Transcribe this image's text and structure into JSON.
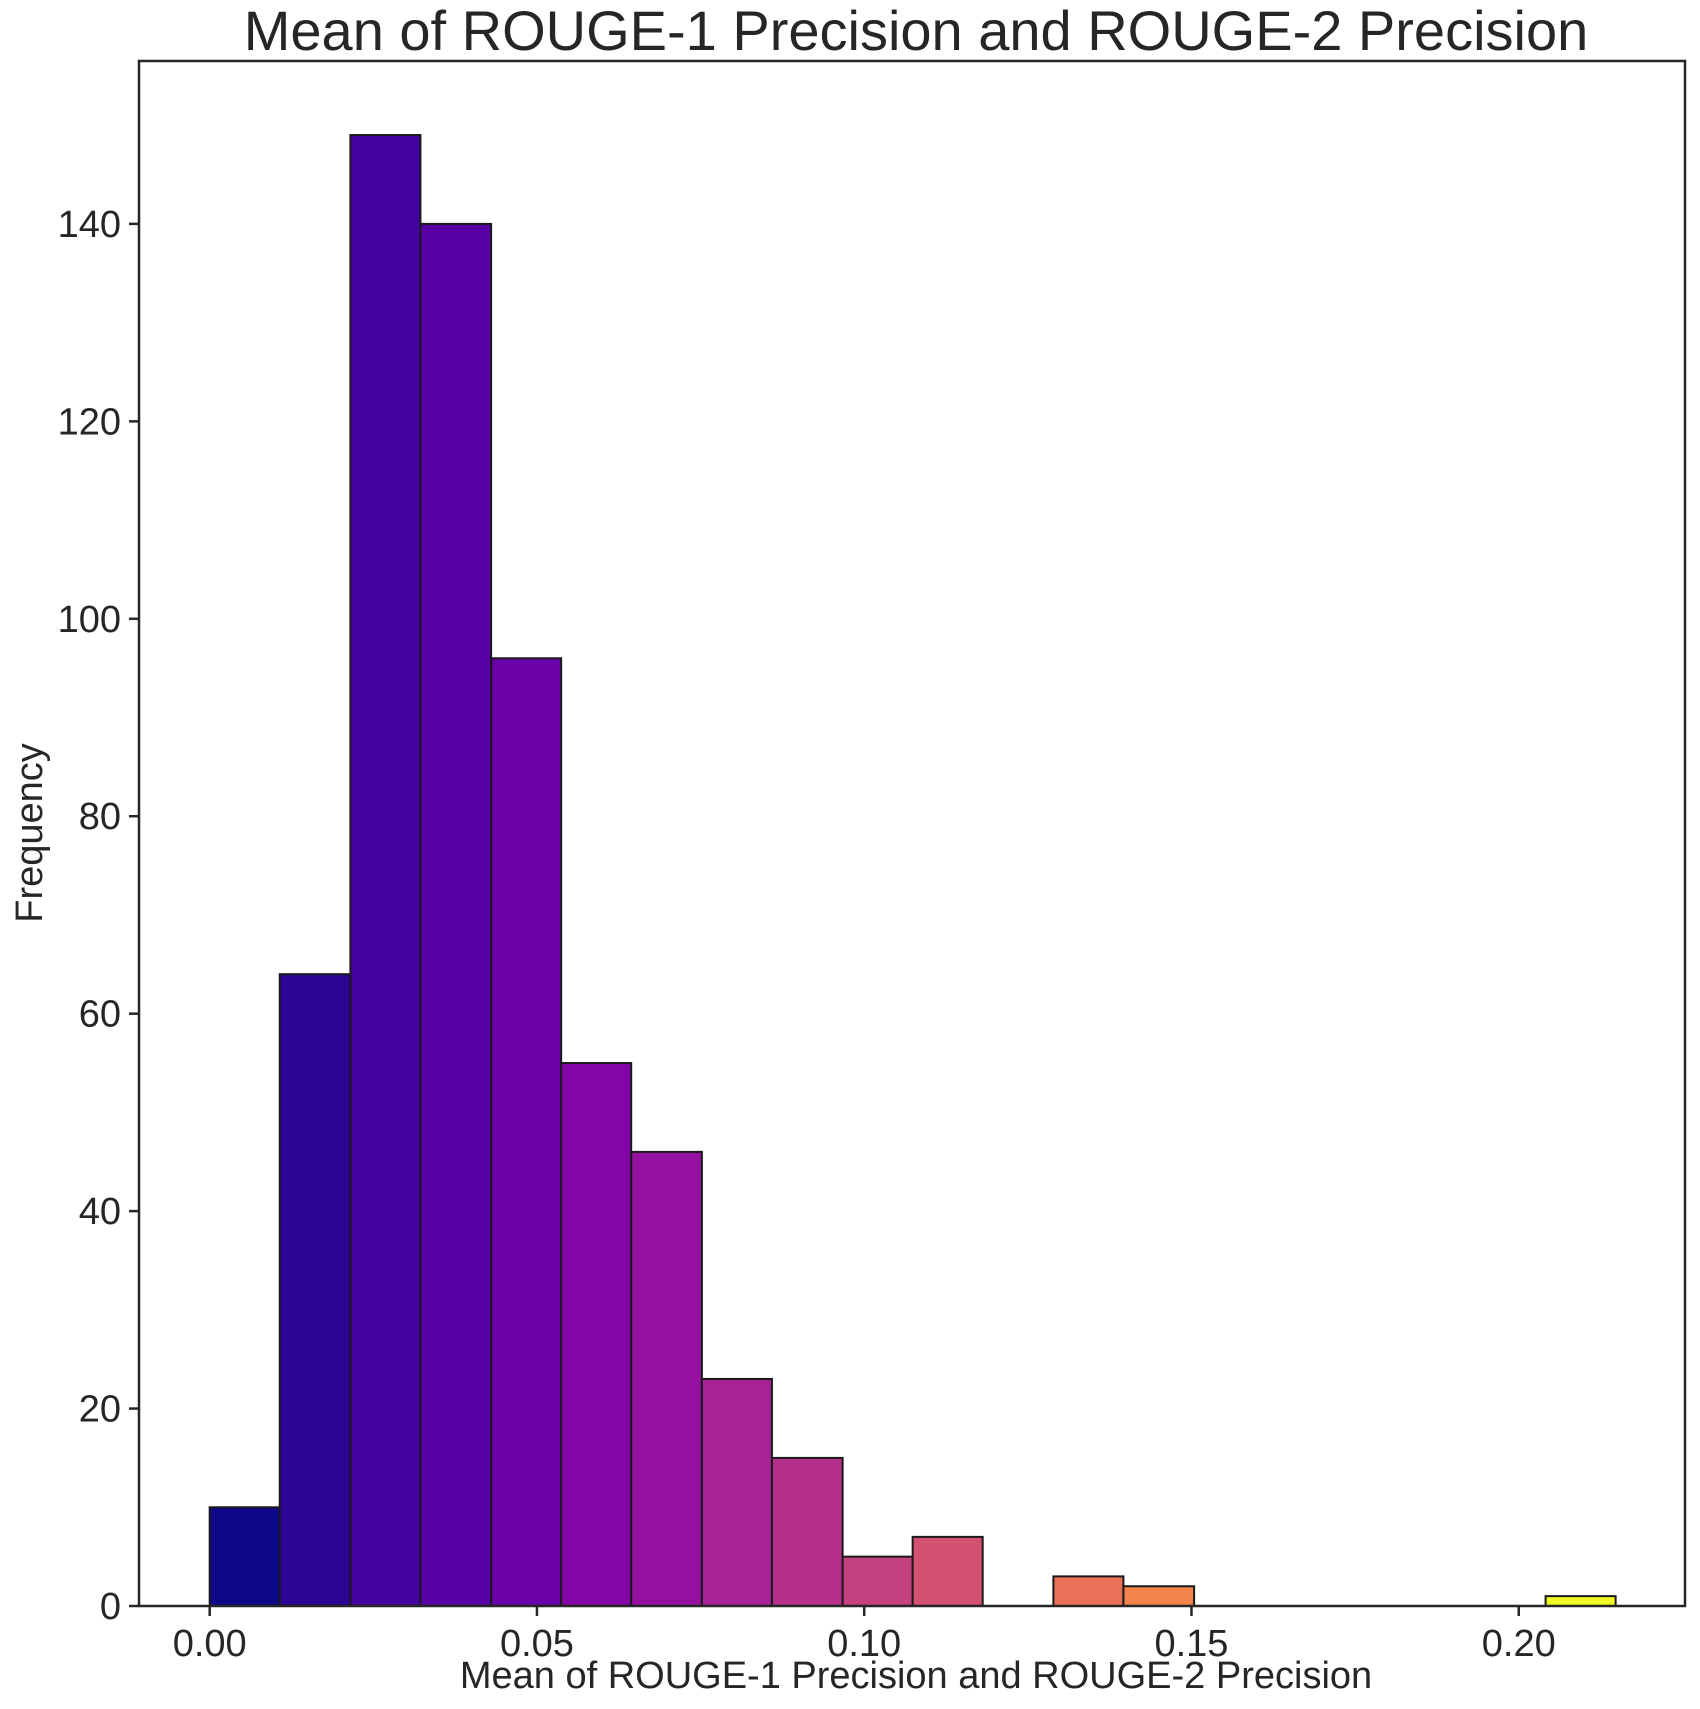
{
  "chart_data": {
    "type": "bar",
    "subtype": "histogram",
    "title": "Mean of ROUGE-1 Precision and ROUGE-2 Precision",
    "xlabel": "Mean of ROUGE-1 Precision and ROUGE-2 Precision",
    "ylabel": "Frequency",
    "xlim": [
      -0.0108,
      0.2254
    ],
    "ylim": [
      0,
      156.5
    ],
    "grid": false,
    "legend": null,
    "xticks": [
      0.0,
      0.05,
      0.1,
      0.15,
      0.2
    ],
    "xtick_labels": [
      "0.00",
      "0.05",
      "0.10",
      "0.15",
      "0.20"
    ],
    "yticks": [
      0,
      20,
      40,
      60,
      80,
      100,
      120,
      140
    ],
    "ytick_labels": [
      "0",
      "20",
      "40",
      "60",
      "80",
      "100",
      "120",
      "140"
    ],
    "colormap": "plasma",
    "bin_width": 0.01074,
    "bin_start": 0.0,
    "bins": [
      {
        "x0": 0.0,
        "x1": 0.0107,
        "value": 10,
        "color": "#0d0887"
      },
      {
        "x0": 0.0107,
        "x1": 0.0215,
        "value": 64,
        "color": "#2c0594"
      },
      {
        "x0": 0.0215,
        "x1": 0.0322,
        "value": 149,
        "color": "#43039e"
      },
      {
        "x0": 0.0322,
        "x1": 0.043,
        "value": 140,
        "color": "#5901a5"
      },
      {
        "x0": 0.043,
        "x1": 0.0537,
        "value": 96,
        "color": "#6a00a8"
      },
      {
        "x0": 0.0537,
        "x1": 0.0644,
        "value": 55,
        "color": "#8305a7"
      },
      {
        "x0": 0.0644,
        "x1": 0.0752,
        "value": 46,
        "color": "#9511a1"
      },
      {
        "x0": 0.0752,
        "x1": 0.0859,
        "value": 23,
        "color": "#a72197"
      },
      {
        "x0": 0.0859,
        "x1": 0.0967,
        "value": 15,
        "color": "#b6308b"
      },
      {
        "x0": 0.0967,
        "x1": 0.1074,
        "value": 5,
        "color": "#c5407e"
      },
      {
        "x0": 0.1074,
        "x1": 0.1181,
        "value": 7,
        "color": "#d35171"
      },
      {
        "x0": 0.1181,
        "x1": 0.1289,
        "value": 0,
        "color": "#de6164"
      },
      {
        "x0": 0.1289,
        "x1": 0.1396,
        "value": 3,
        "color": "#e97158"
      },
      {
        "x0": 0.1396,
        "x1": 0.1504,
        "value": 2,
        "color": "#f2844b"
      },
      {
        "x0": 0.1504,
        "x1": 0.1611,
        "value": 0,
        "color": "#f89540"
      },
      {
        "x0": 0.1611,
        "x1": 0.1718,
        "value": 0,
        "color": "#fca636"
      },
      {
        "x0": 0.1718,
        "x1": 0.1826,
        "value": 0,
        "color": "#feba2c"
      },
      {
        "x0": 0.1826,
        "x1": 0.1933,
        "value": 0,
        "color": "#fcce25"
      },
      {
        "x0": 0.1933,
        "x1": 0.2041,
        "value": 0,
        "color": "#f7e225"
      },
      {
        "x0": 0.2041,
        "x1": 0.2148,
        "value": 1,
        "color": "#f0f921"
      }
    ]
  }
}
